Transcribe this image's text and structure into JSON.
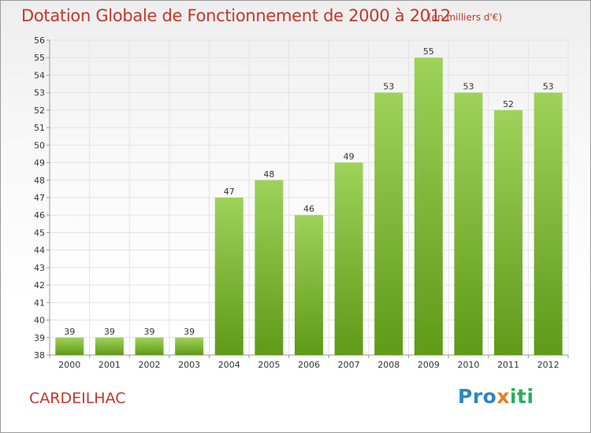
{
  "header": {
    "title": "Dotation Globale de Fonctionnement de 2000 à 2012",
    "subtitle": "(en milliers d'€)"
  },
  "footer": {
    "commune": "CARDEILHAC",
    "logo_parts": [
      "Pro",
      "x",
      "iti"
    ]
  },
  "colors": {
    "title_text": "#c0392b",
    "bar_light": "#9ed25a",
    "bar_dark": "#5f9a18",
    "grid": "#e3e3e3"
  },
  "chart_data": {
    "type": "bar",
    "categories": [
      "2000",
      "2001",
      "2002",
      "2003",
      "2004",
      "2005",
      "2006",
      "2007",
      "2008",
      "2009",
      "2010",
      "2011",
      "2012"
    ],
    "values": [
      39,
      39,
      39,
      39,
      47,
      48,
      46,
      49,
      53,
      55,
      53,
      52,
      53
    ],
    "title": "Dotation Globale de Fonctionnement de 2000 à 2012",
    "subtitle": "(en milliers d'€)",
    "ylim": [
      38,
      56
    ],
    "yticks": [
      38,
      39,
      40,
      41,
      42,
      43,
      44,
      45,
      46,
      47,
      48,
      49,
      50,
      51,
      52,
      53,
      54,
      55,
      56
    ],
    "grid": true,
    "data_labels": true
  }
}
